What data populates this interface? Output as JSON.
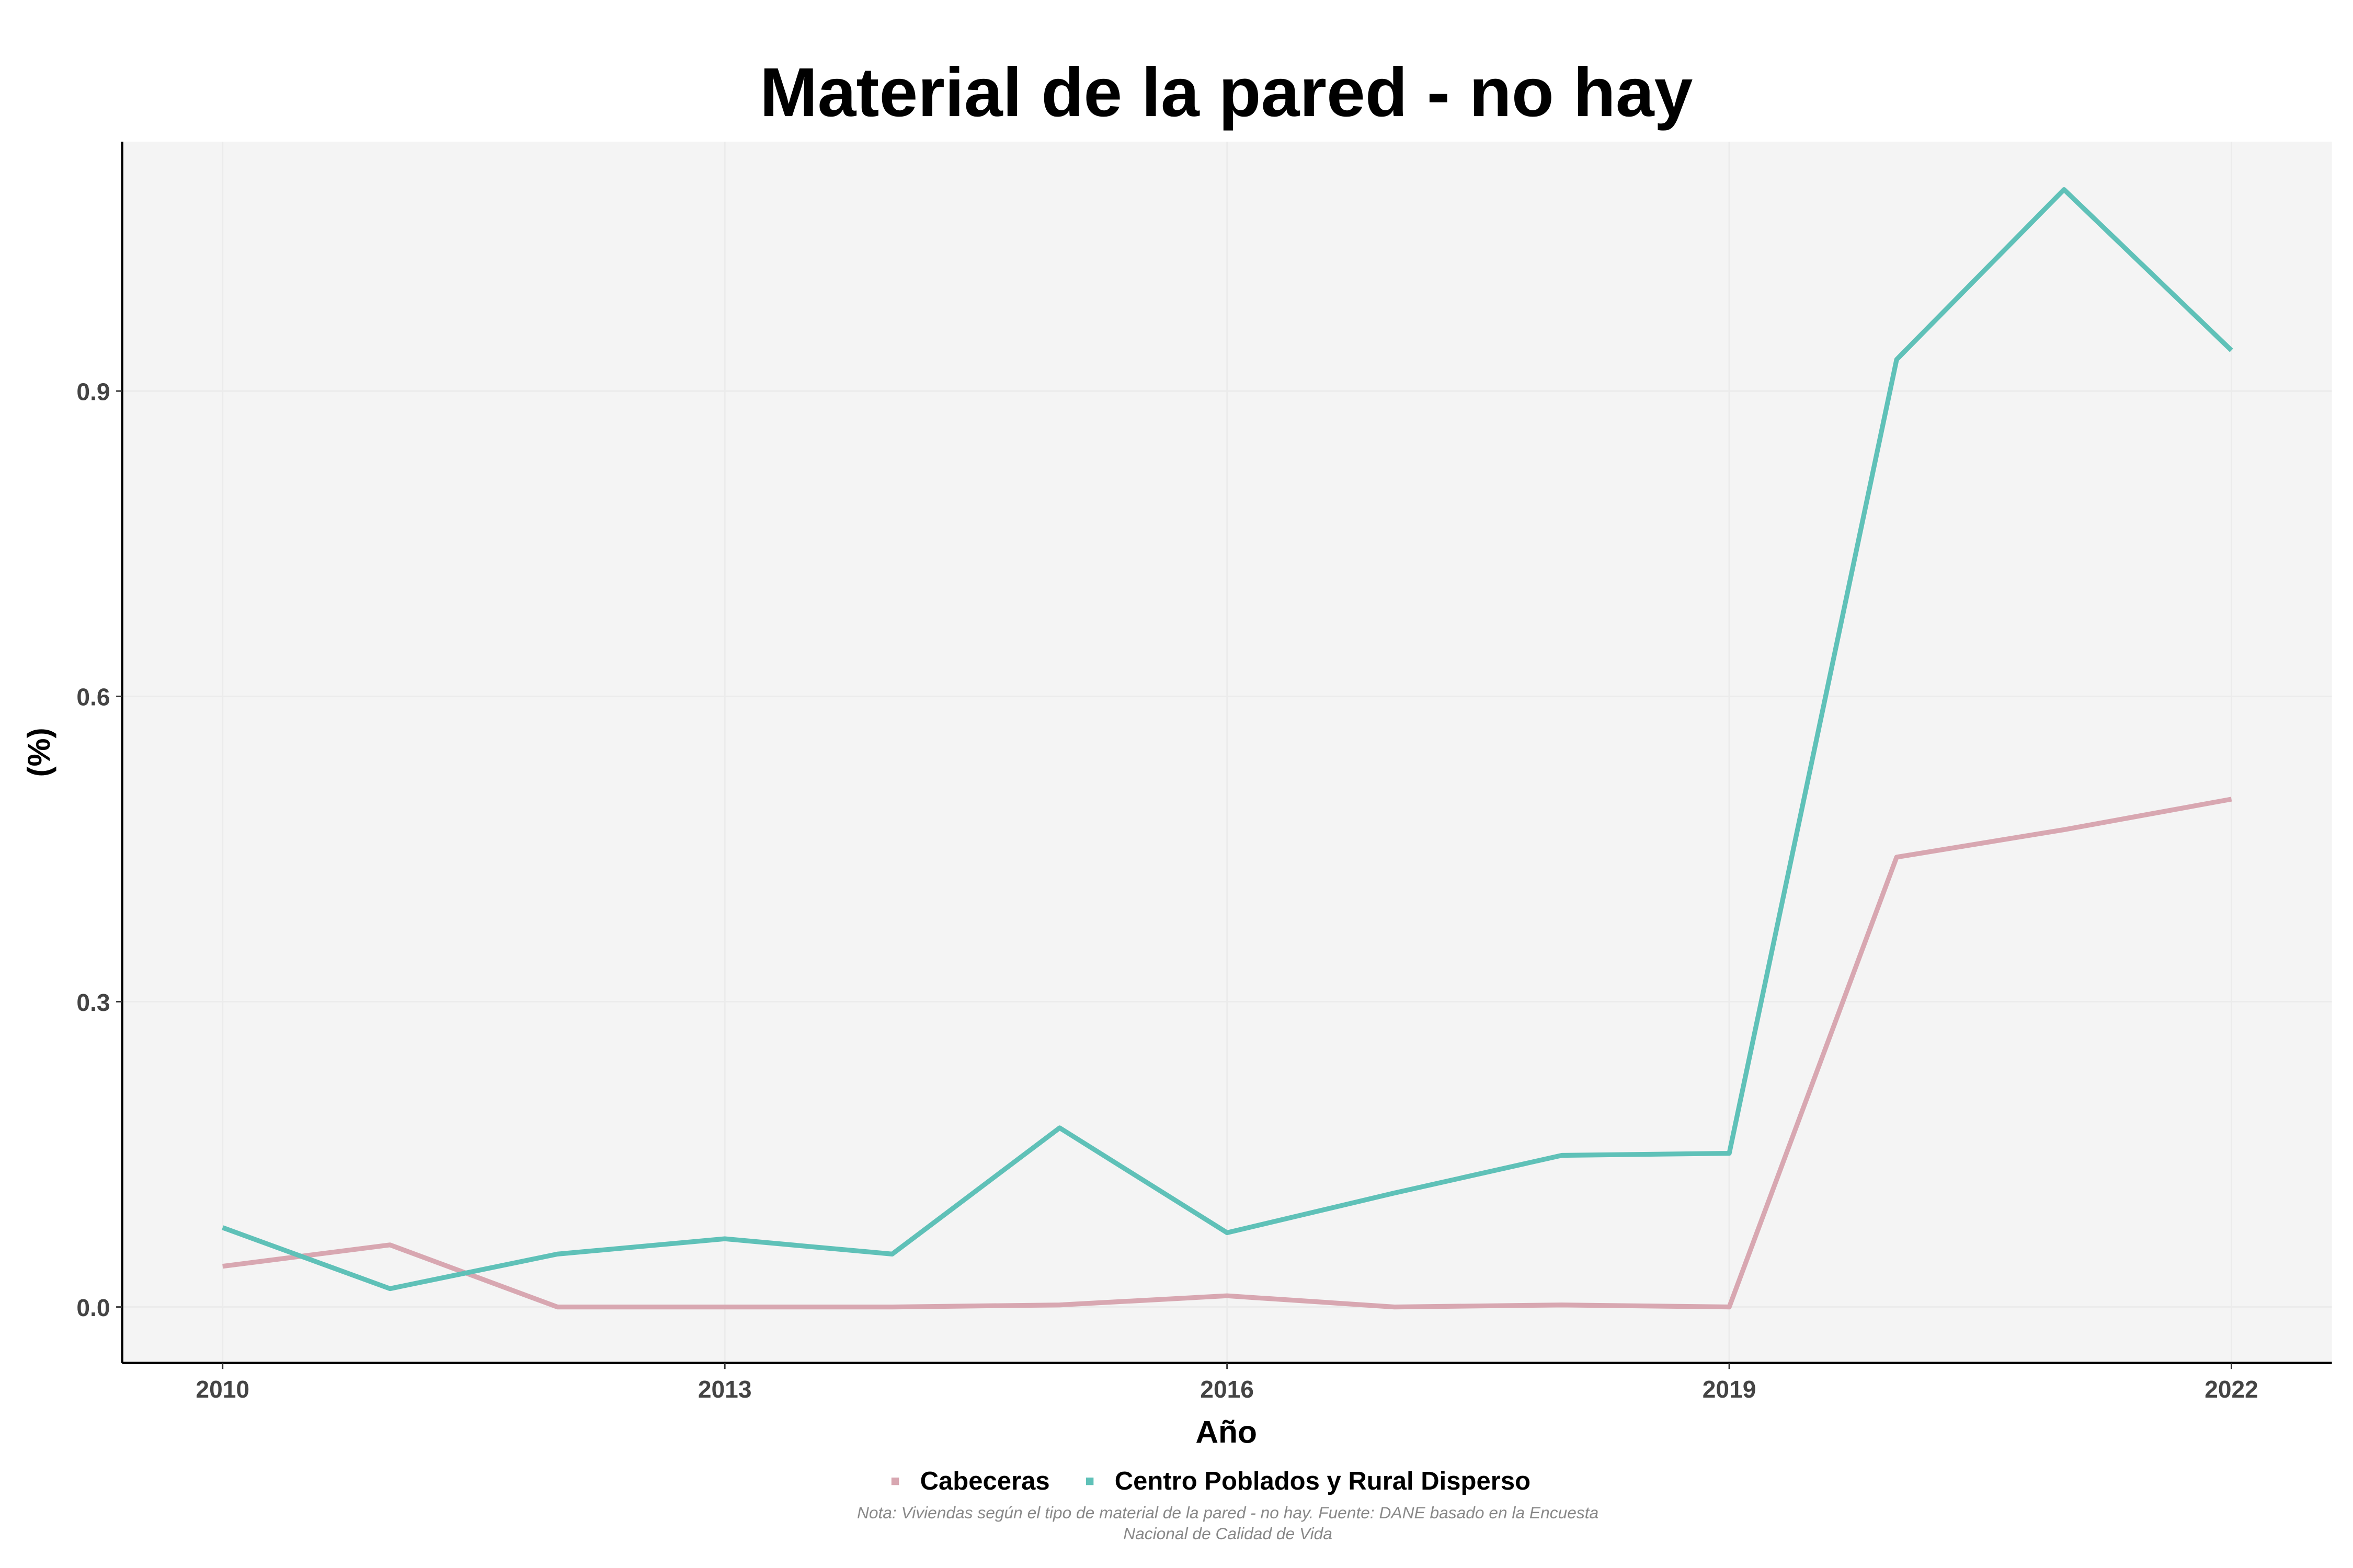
{
  "chart_data": {
    "type": "line",
    "title": "Material de la pared - no hay",
    "xlabel": "Año",
    "ylabel": "(%)",
    "x": [
      2010,
      2011,
      2012,
      2013,
      2014,
      2015,
      2016,
      2017,
      2018,
      2019,
      2020,
      2021,
      2022
    ],
    "xticks": [
      "2010",
      "2013",
      "2016",
      "2019",
      "2022"
    ],
    "yticks": [
      "0.0",
      "0.3",
      "0.6",
      "0.9"
    ],
    "xlim": [
      2009.4,
      2022.6
    ],
    "ylim": [
      -0.055,
      1.145
    ],
    "grid": true,
    "legend_position": "bottom",
    "series": [
      {
        "name": "Cabeceras",
        "color": "#d8a7b1",
        "values": [
          0.04,
          0.061,
          0.0,
          0.0,
          0.0,
          0.002,
          0.011,
          0.0,
          0.002,
          0.0,
          0.442,
          0.469,
          0.499
        ]
      },
      {
        "name": "Centro Poblados y Rural Disperso",
        "color": "#5fc1b8",
        "values": [
          0.078,
          0.018,
          0.052,
          0.067,
          0.052,
          0.176,
          0.073,
          0.112,
          0.149,
          0.151,
          0.931,
          1.098,
          0.94
        ]
      }
    ],
    "note": [
      "Nota: Viviendas según el tipo de material de la pared - no hay. Fuente: DANE basado en la Encuesta",
      "Nacional de Calidad de Vida"
    ]
  }
}
